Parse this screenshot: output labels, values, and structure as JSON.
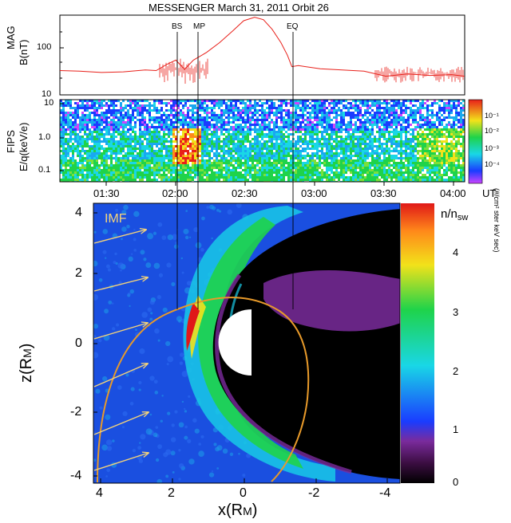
{
  "title": "MESSENGER  March 31, 2011 Orbit 26",
  "colors": {
    "mag_line": "#e8201a",
    "orbit": "#e89a2a",
    "imf_arrow": "#f4d37a",
    "panel_frame": "#000000"
  },
  "chart_data": [
    {
      "type": "line",
      "panel": "MAG",
      "ylabel_line1": "MAG",
      "ylabel_line2": "B(nT)",
      "y_scale": "log",
      "ylim": [
        10,
        500
      ],
      "yticks": [
        10,
        100
      ],
      "x_unit": "UT",
      "xlim": [
        "01:11",
        "04:16"
      ],
      "event_markers": [
        {
          "label": "BS",
          "time": "02:00"
        },
        {
          "label": "MP",
          "time": "02:08"
        },
        {
          "label": "EQ",
          "time": "02:57"
        }
      ],
      "series": [
        {
          "x": [
            "01:11",
            "01:20",
            "01:30",
            "01:40",
            "01:50",
            "01:55",
            "02:00",
            "02:04",
            "02:08",
            "02:12",
            "02:18",
            "02:24",
            "02:30",
            "02:35",
            "02:40",
            "02:44",
            "02:48",
            "02:52",
            "02:55",
            "02:57",
            "03:00",
            "03:10",
            "03:20",
            "03:30",
            "03:40",
            "03:50",
            "04:00",
            "04:10",
            "04:16"
          ],
          "values": [
            33,
            32,
            30,
            31,
            34,
            33,
            45,
            55,
            35,
            55,
            80,
            130,
            230,
            380,
            450,
            400,
            250,
            130,
            70,
            40,
            42,
            36,
            34,
            32,
            25,
            28,
            26,
            27,
            25
          ]
        }
      ]
    },
    {
      "type": "heatmap",
      "panel": "FIPS",
      "ylabel_line1": "FIPS",
      "ylabel_line2": "E/q(keV/e)",
      "y_scale": "log",
      "ylim": [
        0.05,
        13
      ],
      "yticks": [
        "0.1",
        "1.0",
        "10"
      ],
      "colorbar_label": "(#/cm² ster keV sec)",
      "colorbar_ticks": [
        "10⁻¹",
        "10⁻²",
        "10⁻³",
        "10⁻⁴"
      ]
    },
    {
      "type": "heatmap",
      "panel": "density-model",
      "xlabel": "x(R",
      "xlabel_sub": "M",
      "ylabel": "z(R",
      "ylabel_sub": "M",
      "xlim": [
        4.4,
        -4.8
      ],
      "ylim": [
        -4.2,
        4.3
      ],
      "xticks": [
        "4",
        "2",
        "0",
        "-2",
        "-4"
      ],
      "yticks": [
        "4",
        "2",
        "0",
        "-2",
        "-4"
      ],
      "annotation": "IMF",
      "colorbar_label": "n/n",
      "colorbar_label_sub": "sw",
      "colorbar_ticks": [
        "4",
        "3",
        "2",
        "1",
        "0"
      ]
    }
  ],
  "time_axis": {
    "ticks": [
      "01:30",
      "02:00",
      "02:30",
      "03:00",
      "03:30",
      "04:00"
    ],
    "unit": "UT"
  }
}
